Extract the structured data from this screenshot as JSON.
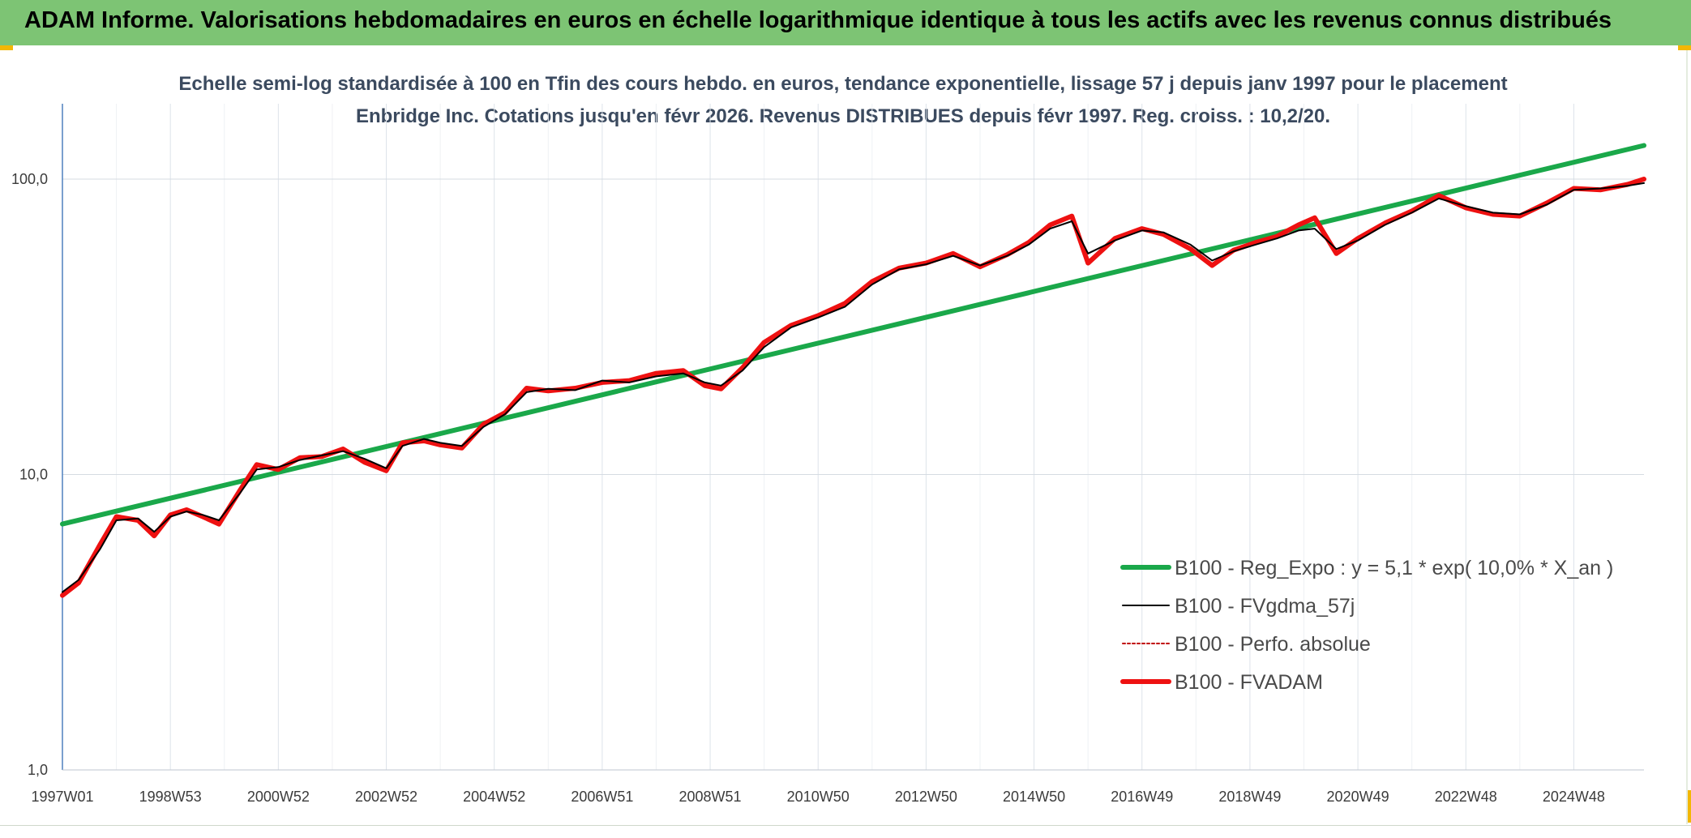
{
  "header": {
    "title": "ADAM Informe. Valorisations hebdomadaires en euros en échelle logarithmique identique à tous les actifs avec les revenus connus distribués"
  },
  "chart_data": {
    "type": "line",
    "title": "Echelle semi-log standardisée à 100 en Tfin des cours hebdo. en euros, tendance exponentielle, lissage 57 j depuis janv 1997 pour le placement Enbridge Inc. Cotations jusqu'en févr 2026. Revenus DISTRIBUES depuis févr 1997. Reg. croiss. : 10,2/20.",
    "y_scale": "log",
    "ylim": [
      1,
      180
    ],
    "y_ticks": [
      {
        "value": 1,
        "label": "1,0"
      },
      {
        "value": 10,
        "label": "10,0"
      },
      {
        "value": 100,
        "label": "100,0"
      }
    ],
    "x_range_years": [
      1997.0,
      2026.3
    ],
    "x_ticks": [
      {
        "year": 1997.0,
        "label": "1997W01"
      },
      {
        "year": 1999.0,
        "label": "1998W53"
      },
      {
        "year": 2001.0,
        "label": "2000W52"
      },
      {
        "year": 2003.0,
        "label": "2002W52"
      },
      {
        "year": 2005.0,
        "label": "2004W52"
      },
      {
        "year": 2007.0,
        "label": "2006W51"
      },
      {
        "year": 2009.0,
        "label": "2008W51"
      },
      {
        "year": 2011.0,
        "label": "2010W50"
      },
      {
        "year": 2013.0,
        "label": "2012W50"
      },
      {
        "year": 2015.0,
        "label": "2014W50"
      },
      {
        "year": 2017.0,
        "label": "2016W49"
      },
      {
        "year": 2019.0,
        "label": "2018W49"
      },
      {
        "year": 2021.0,
        "label": "2020W49"
      },
      {
        "year": 2023.0,
        "label": "2022W48"
      },
      {
        "year": 2025.0,
        "label": "2024W48"
      }
    ],
    "grid": true,
    "legend_position": "bottom-right",
    "series": [
      {
        "name": "B100 - Reg_Expo : y = 5,1 * exp( 10,0% *  X_an )",
        "color": "#1aa84a",
        "style": "solid-thick",
        "x": [
          1997.0,
          2026.3
        ],
        "y": [
          6.8,
          130
        ]
      },
      {
        "name": "B100 - FVgdma_57j",
        "color": "#000000",
        "style": "solid",
        "x": [
          1997.0,
          1997.3,
          1997.7,
          1998.0,
          1998.4,
          1998.7,
          1999.0,
          1999.3,
          1999.6,
          1999.9,
          2000.3,
          2000.6,
          2001.0,
          2001.4,
          2001.8,
          2002.2,
          2002.6,
          2003.0,
          2003.3,
          2003.7,
          2004.0,
          2004.4,
          2004.8,
          2005.2,
          2005.6,
          2006.0,
          2006.5,
          2007.0,
          2007.5,
          2008.0,
          2008.5,
          2008.9,
          2009.2,
          2009.6,
          2010.0,
          2010.5,
          2011.0,
          2011.5,
          2012.0,
          2012.5,
          2013.0,
          2013.5,
          2014.0,
          2014.5,
          2014.9,
          2015.3,
          2015.7,
          2016.0,
          2016.5,
          2017.0,
          2017.4,
          2017.9,
          2018.3,
          2018.7,
          2019.1,
          2019.5,
          2019.9,
          2020.2,
          2020.6,
          2021.0,
          2021.5,
          2022.0,
          2022.5,
          2023.0,
          2023.5,
          2024.0,
          2024.5,
          2025.0,
          2025.5,
          2026.0,
          2026.3
        ],
        "y": [
          4.0,
          4.4,
          5.6,
          7.0,
          7.1,
          6.4,
          7.2,
          7.5,
          7.3,
          7.0,
          8.7,
          10.4,
          10.6,
          11.2,
          11.6,
          12.0,
          11.3,
          10.5,
          12.5,
          13.2,
          12.8,
          12.5,
          14.5,
          16.0,
          19.0,
          19.5,
          19.3,
          20.8,
          20.5,
          21.5,
          22.0,
          20.5,
          20.0,
          22.5,
          27.0,
          31.5,
          34.0,
          37.0,
          44.0,
          49.5,
          51.5,
          55.0,
          51.0,
          55.0,
          60.0,
          68.0,
          72.0,
          56.0,
          62.0,
          67.0,
          66.0,
          60.0,
          53.0,
          57.0,
          60.0,
          63.0,
          67.0,
          68.0,
          58.0,
          62.0,
          70.0,
          77.0,
          86.0,
          81.0,
          77.0,
          76.0,
          82.0,
          92.0,
          93.0,
          95.0,
          97.0
        ]
      },
      {
        "name": "B100 - Perfo. absolue",
        "color": "#c00000",
        "style": "dotted"
      },
      {
        "name": "B100 - FVADAM",
        "color": "#ee1111",
        "style": "solid-thick",
        "x": [
          1997.0,
          1997.3,
          1997.7,
          1998.0,
          1998.4,
          1998.7,
          1999.0,
          1999.3,
          1999.6,
          1999.9,
          2000.3,
          2000.6,
          2001.0,
          2001.4,
          2001.8,
          2002.2,
          2002.6,
          2003.0,
          2003.3,
          2003.7,
          2004.0,
          2004.4,
          2004.8,
          2005.2,
          2005.6,
          2006.0,
          2006.5,
          2007.0,
          2007.5,
          2008.0,
          2008.5,
          2008.9,
          2009.2,
          2009.6,
          2010.0,
          2010.5,
          2011.0,
          2011.5,
          2012.0,
          2012.5,
          2013.0,
          2013.5,
          2014.0,
          2014.5,
          2014.9,
          2015.3,
          2015.7,
          2016.0,
          2016.5,
          2017.0,
          2017.4,
          2017.9,
          2018.3,
          2018.7,
          2019.1,
          2019.5,
          2019.9,
          2020.2,
          2020.6,
          2021.0,
          2021.5,
          2022.0,
          2022.5,
          2023.0,
          2023.5,
          2024.0,
          2024.5,
          2025.0,
          2025.5,
          2026.0,
          2026.3
        ],
        "y": [
          3.9,
          4.3,
          5.8,
          7.2,
          7.0,
          6.2,
          7.3,
          7.6,
          7.2,
          6.8,
          8.9,
          10.8,
          10.4,
          11.4,
          11.5,
          12.2,
          11.0,
          10.3,
          12.8,
          13.0,
          12.6,
          12.3,
          14.8,
          16.2,
          19.6,
          19.2,
          19.6,
          20.5,
          20.8,
          22.0,
          22.5,
          20.0,
          19.5,
          23.0,
          28.0,
          32.0,
          34.5,
          38.0,
          45.0,
          50.0,
          52.0,
          56.0,
          50.5,
          55.5,
          61.0,
          70.0,
          75.0,
          52.0,
          63.0,
          68.0,
          65.0,
          58.0,
          51.0,
          57.5,
          61.0,
          64.0,
          70.0,
          74.0,
          56.0,
          63.0,
          71.0,
          78.0,
          88.0,
          80.0,
          76.0,
          75.0,
          83.0,
          93.0,
          92.0,
          96.0,
          100.0
        ]
      }
    ]
  }
}
